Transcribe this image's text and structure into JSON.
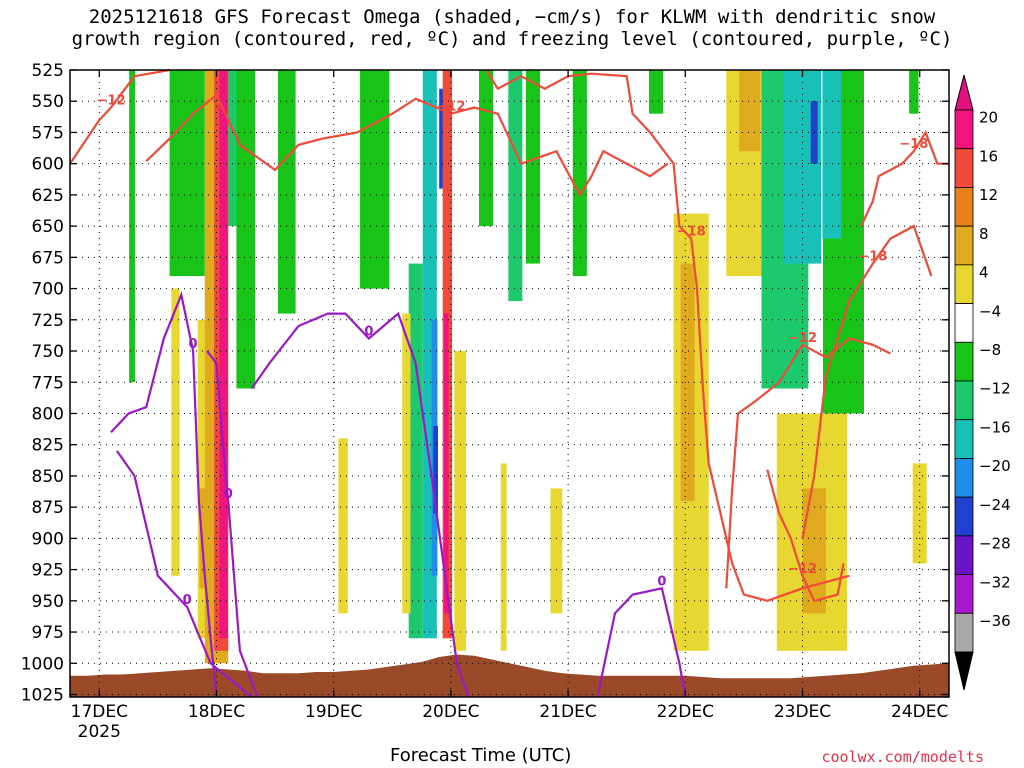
{
  "chart_data": {
    "type": "heatmap",
    "title_line1": "2025121618 GFS Forecast Omega (shaded, −cm/s) for KLWM with dendritic snow",
    "title_line2": "growth region (contoured, red, ºC) and freezing level (contoured, purple, ºC)",
    "xlabel": "Forecast Time (UTC)",
    "credit": "coolwx.com/modelts",
    "x_ticks": [
      "17DEC",
      "18DEC",
      "19DEC",
      "20DEC",
      "21DEC",
      "22DEC",
      "23DEC",
      "24DEC"
    ],
    "x_sub": "2025",
    "x_range_days": [
      -0.25,
      7.25
    ],
    "y_ticks": [
      525,
      550,
      575,
      600,
      625,
      650,
      675,
      700,
      725,
      750,
      775,
      800,
      825,
      850,
      875,
      900,
      925,
      950,
      975,
      1000,
      1025
    ],
    "ylim": [
      525,
      1027
    ],
    "colorbar": {
      "labels": [
        "20",
        "16",
        "12",
        "8",
        "4",
        "−4",
        "−8",
        "−12",
        "−16",
        "−20",
        "−24",
        "−28",
        "−32",
        "−36"
      ],
      "colors": [
        "#f0147f",
        "#ef4a3a",
        "#e8801c",
        "#e0aa1e",
        "#e8d730",
        "#ffffff",
        "#18c418",
        "#1dc96d",
        "#18c0b8",
        "#1e8ee8",
        "#2040d0",
        "#6a14c8",
        "#a818d0",
        "#a8a8a8"
      ],
      "top_arrow_color": "#e0107f",
      "bottom_arrow_color": "#000000"
    },
    "omega_regions": [
      {
        "day": 0.28,
        "width": 0.05,
        "top": 525,
        "bottom": 775,
        "color": "#18c418"
      },
      {
        "day": 0.75,
        "width": 0.3,
        "top": 525,
        "bottom": 690,
        "color": "#18c418"
      },
      {
        "day": 0.65,
        "width": 0.07,
        "top": 700,
        "bottom": 930,
        "color": "#e8d730"
      },
      {
        "day": 1.13,
        "width": 0.12,
        "top": 525,
        "bottom": 650,
        "color": "#1dc96d"
      },
      {
        "day": 1.25,
        "width": 0.16,
        "top": 525,
        "bottom": 780,
        "color": "#18c418"
      },
      {
        "day": 0.88,
        "width": 0.08,
        "top": 725,
        "bottom": 980,
        "color": "#e8d730"
      },
      {
        "day": 0.88,
        "width": 0.05,
        "top": 860,
        "bottom": 940,
        "color": "#e0aa1e"
      },
      {
        "day": 1.0,
        "width": 0.2,
        "top": 525,
        "bottom": 1000,
        "color": "#e0aa1e"
      },
      {
        "day": 1.04,
        "width": 0.12,
        "top": 525,
        "bottom": 990,
        "color": "#ef4a3a"
      },
      {
        "day": 1.06,
        "width": 0.07,
        "top": 525,
        "bottom": 980,
        "color": "#f0147f"
      },
      {
        "day": 1.6,
        "width": 0.15,
        "top": 525,
        "bottom": 720,
        "color": "#18c418"
      },
      {
        "day": 2.08,
        "width": 0.08,
        "top": 820,
        "bottom": 960,
        "color": "#e8d730"
      },
      {
        "day": 2.35,
        "width": 0.25,
        "top": 525,
        "bottom": 700,
        "color": "#18c418"
      },
      {
        "day": 2.7,
        "width": 0.12,
        "top": 680,
        "bottom": 980,
        "color": "#1dc96d"
      },
      {
        "day": 2.62,
        "width": 0.07,
        "top": 720,
        "bottom": 960,
        "color": "#e8d730"
      },
      {
        "day": 2.82,
        "width": 0.12,
        "top": 525,
        "bottom": 980,
        "color": "#18c0b8"
      },
      {
        "day": 2.86,
        "width": 0.05,
        "top": 725,
        "bottom": 930,
        "color": "#1e8ee8"
      },
      {
        "day": 2.87,
        "width": 0.04,
        "top": 810,
        "bottom": 880,
        "color": "#2040d0"
      },
      {
        "day": 2.92,
        "width": 0.04,
        "top": 540,
        "bottom": 620,
        "color": "#2040d0"
      },
      {
        "day": 2.97,
        "width": 0.08,
        "top": 525,
        "bottom": 980,
        "color": "#ef4a3a"
      },
      {
        "day": 2.96,
        "width": 0.04,
        "top": 720,
        "bottom": 960,
        "color": "#f0147f"
      },
      {
        "day": 3.08,
        "width": 0.1,
        "top": 750,
        "bottom": 990,
        "color": "#e8d730"
      },
      {
        "day": 3.3,
        "width": 0.12,
        "top": 525,
        "bottom": 650,
        "color": "#18c418"
      },
      {
        "day": 3.55,
        "width": 0.12,
        "top": 525,
        "bottom": 710,
        "color": "#1dc96d"
      },
      {
        "day": 3.7,
        "width": 0.12,
        "top": 525,
        "bottom": 680,
        "color": "#18c418"
      },
      {
        "day": 3.45,
        "width": 0.05,
        "top": 840,
        "bottom": 990,
        "color": "#e8d730"
      },
      {
        "day": 3.9,
        "width": 0.1,
        "top": 860,
        "bottom": 960,
        "color": "#e8d730"
      },
      {
        "day": 4.1,
        "width": 0.12,
        "top": 525,
        "bottom": 690,
        "color": "#18c418"
      },
      {
        "day": 4.75,
        "width": 0.12,
        "top": 525,
        "bottom": 560,
        "color": "#18c418"
      },
      {
        "day": 5.05,
        "width": 0.3,
        "top": 640,
        "bottom": 990,
        "color": "#e8d730"
      },
      {
        "day": 5.02,
        "width": 0.12,
        "top": 680,
        "bottom": 870,
        "color": "#e0aa1e"
      },
      {
        "day": 5.5,
        "width": 0.3,
        "top": 525,
        "bottom": 690,
        "color": "#e8d730"
      },
      {
        "day": 5.55,
        "width": 0.18,
        "top": 525,
        "bottom": 590,
        "color": "#e0aa1e"
      },
      {
        "day": 5.85,
        "width": 0.4,
        "top": 525,
        "bottom": 780,
        "color": "#1dc96d"
      },
      {
        "day": 6.0,
        "width": 0.32,
        "top": 525,
        "bottom": 680,
        "color": "#18c0b8"
      },
      {
        "day": 6.1,
        "width": 0.06,
        "top": 550,
        "bottom": 600,
        "color": "#2040d0"
      },
      {
        "day": 6.35,
        "width": 0.35,
        "top": 525,
        "bottom": 800,
        "color": "#18c418"
      },
      {
        "day": 6.25,
        "width": 0.16,
        "top": 525,
        "bottom": 660,
        "color": "#18c0b8"
      },
      {
        "day": 6.95,
        "width": 0.08,
        "top": 525,
        "bottom": 560,
        "color": "#18c418"
      },
      {
        "day": 6.08,
        "width": 0.6,
        "top": 800,
        "bottom": 990,
        "color": "#e8d730"
      },
      {
        "day": 6.1,
        "width": 0.2,
        "top": 860,
        "bottom": 960,
        "color": "#e0aa1e"
      },
      {
        "day": 7.0,
        "width": 0.12,
        "top": 840,
        "bottom": 920,
        "color": "#e8d730"
      }
    ],
    "terrain_pressures": [
      1010,
      1010,
      1009,
      1009,
      1008,
      1007,
      1006,
      1005,
      1004,
      1005,
      1006,
      1008,
      1008,
      1008,
      1007,
      1007,
      1006,
      1005,
      1003,
      1001,
      999,
      995,
      993,
      994,
      997,
      1000,
      1003,
      1006,
      1008,
      1009,
      1010,
      1010,
      1010,
      1010,
      1010,
      1010,
      1011,
      1012,
      1012,
      1012,
      1012,
      1012,
      1011,
      1010,
      1009,
      1008,
      1006,
      1004,
      1002,
      1001,
      1000
    ],
    "freezing_level": [
      {
        "label": "0",
        "points": [
          [
            0.1,
            815
          ],
          [
            0.25,
            800
          ],
          [
            0.4,
            795
          ],
          [
            0.55,
            740
          ],
          [
            0.7,
            705
          ],
          [
            0.8,
            750
          ],
          [
            0.85,
            870
          ],
          [
            0.9,
            930
          ],
          [
            0.95,
            980
          ],
          [
            1.0,
            1027
          ]
        ]
      },
      {
        "label": "0",
        "points": [
          [
            0.15,
            830
          ],
          [
            0.3,
            850
          ],
          [
            0.5,
            930
          ],
          [
            0.75,
            955
          ],
          [
            0.95,
            1000
          ],
          [
            1.3,
            1027
          ]
        ]
      },
      {
        "label": "0",
        "points": [
          [
            1.3,
            780
          ],
          [
            1.45,
            760
          ],
          [
            1.7,
            730
          ],
          [
            1.95,
            720
          ],
          [
            2.1,
            720
          ],
          [
            2.3,
            740
          ],
          [
            2.55,
            720
          ],
          [
            2.7,
            760
          ],
          [
            2.85,
            860
          ],
          [
            3.05,
            1000
          ],
          [
            3.15,
            1027
          ]
        ]
      },
      {
        "label": "0",
        "points": [
          [
            0.92,
            750
          ],
          [
            1.0,
            760
          ],
          [
            1.05,
            820
          ],
          [
            1.1,
            870
          ],
          [
            1.2,
            990
          ],
          [
            1.35,
            1027
          ]
        ]
      },
      {
        "label": "0",
        "points": [
          [
            4.25,
            1027
          ],
          [
            4.4,
            960
          ],
          [
            4.55,
            945
          ],
          [
            4.8,
            940
          ],
          [
            4.95,
            1000
          ],
          [
            5.0,
            1027
          ]
        ]
      }
    ],
    "dgz_contours": [
      {
        "label": "−12",
        "points": [
          [
            -0.25,
            600
          ],
          [
            0.0,
            565
          ],
          [
            0.1,
            555
          ],
          [
            0.3,
            530
          ],
          [
            0.6,
            525
          ]
        ]
      },
      {
        "label": "−12",
        "points": [
          [
            0.4,
            598
          ],
          [
            0.6,
            580
          ],
          [
            0.8,
            560
          ],
          [
            1.0,
            545
          ],
          [
            1.2,
            585
          ],
          [
            1.5,
            605
          ],
          [
            1.7,
            585
          ],
          [
            1.9,
            580
          ],
          [
            2.2,
            575
          ],
          [
            2.5,
            560
          ],
          [
            2.7,
            548
          ],
          [
            3.0,
            560
          ],
          [
            3.2,
            555
          ],
          [
            3.4,
            560
          ],
          [
            3.6,
            600
          ],
          [
            3.9,
            590
          ],
          [
            4.1,
            625
          ],
          [
            4.2,
            610
          ],
          [
            4.3,
            590
          ],
          [
            4.5,
            600
          ],
          [
            4.7,
            610
          ],
          [
            4.85,
            600
          ]
        ]
      },
      {
        "label": "−18",
        "points": [
          [
            3.3,
            525
          ],
          [
            3.4,
            540
          ],
          [
            3.6,
            530
          ],
          [
            3.8,
            540
          ],
          [
            4.0,
            530
          ],
          [
            4.2,
            528
          ],
          [
            4.5,
            530
          ],
          [
            4.55,
            560
          ],
          [
            4.7,
            575
          ],
          [
            4.9,
            600
          ],
          [
            4.95,
            650
          ],
          [
            5.05,
            660
          ],
          [
            5.1,
            700
          ],
          [
            5.15,
            780
          ],
          [
            5.2,
            840
          ],
          [
            5.3,
            880
          ],
          [
            5.4,
            920
          ],
          [
            5.5,
            945
          ],
          [
            5.7,
            950
          ],
          [
            6.0,
            940
          ],
          [
            6.2,
            935
          ],
          [
            6.4,
            930
          ]
        ]
      },
      {
        "label": "−12",
        "points": [
          [
            5.35,
            940
          ],
          [
            5.4,
            860
          ],
          [
            5.45,
            800
          ],
          [
            5.6,
            790
          ],
          [
            5.8,
            775
          ],
          [
            6.0,
            745
          ],
          [
            6.2,
            755
          ],
          [
            6.4,
            740
          ],
          [
            6.6,
            745
          ],
          [
            6.75,
            752
          ]
        ]
      },
      {
        "label": "−18",
        "points": [
          [
            6.0,
            900
          ],
          [
            6.1,
            850
          ],
          [
            6.2,
            770
          ],
          [
            6.4,
            710
          ],
          [
            6.6,
            680
          ],
          [
            6.75,
            660
          ],
          [
            6.95,
            650
          ],
          [
            7.1,
            690
          ]
        ]
      },
      {
        "label": "−12",
        "points": [
          [
            5.7,
            845
          ],
          [
            5.8,
            880
          ],
          [
            5.9,
            900
          ],
          [
            6.0,
            930
          ],
          [
            6.1,
            950
          ],
          [
            6.3,
            945
          ],
          [
            6.35,
            920
          ]
        ]
      },
      {
        "label": "−18",
        "points": [
          [
            6.5,
            650
          ],
          [
            6.6,
            630
          ],
          [
            6.65,
            610
          ],
          [
            6.85,
            600
          ],
          [
            6.95,
            590
          ],
          [
            7.05,
            575
          ],
          [
            7.15,
            600
          ],
          [
            7.25,
            600
          ]
        ]
      }
    ]
  }
}
